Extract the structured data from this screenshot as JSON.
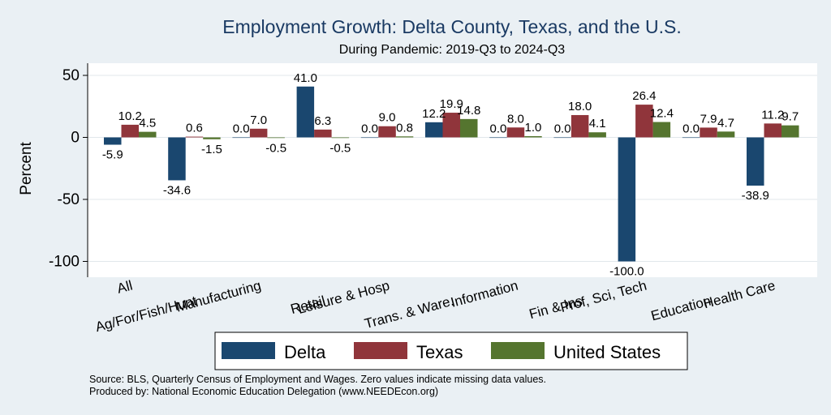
{
  "chart_data": {
    "type": "bar",
    "title": "Employment Growth: Delta County, Texas, and the U.S.",
    "subtitle": "During Pandemic: 2019-Q3 to 2024-Q3",
    "xlabel": "",
    "ylabel": "Percent",
    "ylim": [
      -110,
      60
    ],
    "yticks": [
      -100,
      -50,
      0,
      50
    ],
    "ytick_labels": [
      "-100",
      "-50",
      "0",
      "50"
    ],
    "grid": true,
    "categories": [
      "All",
      "Ag/For/Fish/Hunt",
      "Manufacturing",
      "Retail",
      "Leisure & Hosp",
      "Trans. & Ware.",
      "Information",
      "Fin & Ins",
      "Prof, Sci, Tech",
      "Education",
      "Health Care"
    ],
    "series": [
      {
        "name": "Delta",
        "color": "#1a476f",
        "values": [
          -5.9,
          -34.6,
          0.0,
          41.0,
          0.0,
          12.2,
          0.0,
          0.0,
          -100.0,
          0.0,
          -38.9
        ],
        "labels": [
          "-5.9",
          "-34.6",
          "0.0",
          "41.0",
          "0.0",
          "12.2",
          "0.0",
          "0.0",
          "-100.0",
          "0.0",
          "-38.9"
        ]
      },
      {
        "name": "Texas",
        "color": "#90353b",
        "values": [
          10.2,
          0.6,
          7.0,
          6.3,
          9.0,
          19.9,
          8.0,
          18.0,
          26.4,
          7.9,
          11.2
        ],
        "labels": [
          "10.2",
          "0.6",
          "7.0",
          "6.3",
          "9.0",
          "19.9",
          "8.0",
          "18.0",
          "26.4",
          "7.9",
          "11.2"
        ]
      },
      {
        "name": "United States",
        "color": "#55752f",
        "values": [
          4.5,
          -1.5,
          -0.5,
          -0.5,
          0.8,
          14.8,
          1.0,
          4.1,
          12.4,
          4.7,
          9.7
        ],
        "labels": [
          "4.5",
          "-1.5",
          "-0.5",
          "-0.5",
          "0.8",
          "14.8",
          "1.0",
          "4.1",
          "12.4",
          "4.7",
          "9.7"
        ]
      }
    ],
    "legend_position": "bottom",
    "notes": [
      "Source: BLS, Quarterly Census of Employment and Wages. Zero values indicate missing data values.",
      "Produced by: National Economic Education Delegation (www.NEEDEcon.org)"
    ]
  }
}
